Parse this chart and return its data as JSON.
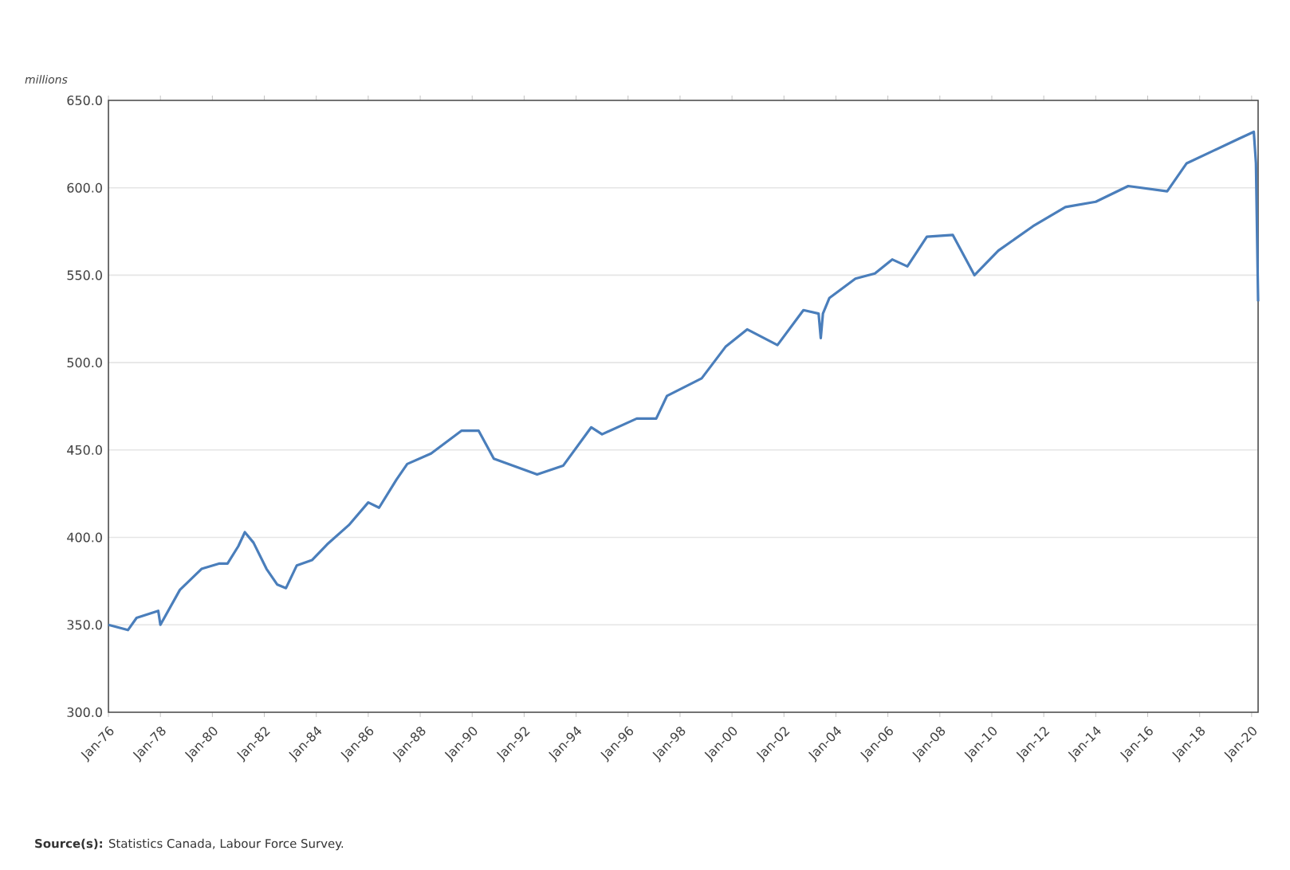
{
  "chart_data": {
    "type": "line",
    "ylabel": "millions",
    "annotations": [
      "**Source(s):** Statistics Canada, Labour Force Survey."
    ],
    "x": [
      "1976-01",
      "1976-10",
      "1977-02",
      "1977-12",
      "1978-01",
      "1978-10",
      "1979-08",
      "1980-04",
      "1980-08",
      "1981-01",
      "1981-04",
      "1981-08",
      "1982-02",
      "1982-07",
      "1982-11",
      "1983-04",
      "1983-11",
      "1984-06",
      "1985-04",
      "1986-01",
      "1986-06",
      "1987-02",
      "1987-07",
      "1988-06",
      "1989-08",
      "1990-04",
      "1990-11",
      "1992-07",
      "1993-07",
      "1994-08",
      "1995-01",
      "1996-05",
      "1997-02",
      "1997-07",
      "1998-11",
      "1999-10",
      "2000-08",
      "2001-10",
      "2002-10",
      "2003-05",
      "2003-06",
      "2003-07",
      "2003-10",
      "2004-10",
      "2005-07",
      "2006-03",
      "2006-10",
      "2007-07",
      "2008-07",
      "2009-05",
      "2010-04",
      "2011-08",
      "2012-11",
      "2014-01",
      "2015-04",
      "2016-10",
      "2017-07",
      "2018-07",
      "2019-07",
      "2020-02",
      "2020-03",
      "2020-04"
    ],
    "series": [
      {
        "color": "#4a7ebb",
        "values": [
          350,
          347,
          354,
          358,
          350,
          370,
          382,
          385,
          385,
          395,
          403,
          397,
          382,
          373,
          371,
          384,
          387,
          396,
          407,
          420,
          417,
          433,
          442,
          448,
          461,
          461,
          445,
          436,
          441,
          463,
          459,
          468,
          468,
          481,
          491,
          509,
          519,
          510,
          530,
          528,
          514,
          528,
          537,
          548,
          551,
          559,
          555,
          572,
          573,
          550,
          564,
          578,
          589,
          592,
          601,
          598,
          614,
          621,
          628,
          632,
          614,
          535
        ]
      }
    ],
    "xlim": [
      "1976-01",
      "2020-04"
    ],
    "xticks": [
      {
        "value": "1976-01",
        "label": "Jan-76"
      },
      {
        "value": "1978-01",
        "label": "Jan-78"
      },
      {
        "value": "1980-01",
        "label": "Jan-80"
      },
      {
        "value": "1982-01",
        "label": "Jan-82"
      },
      {
        "value": "1984-01",
        "label": "Jan-84"
      },
      {
        "value": "1986-01",
        "label": "Jan-86"
      },
      {
        "value": "1988-01",
        "label": "Jan-88"
      },
      {
        "value": "1990-01",
        "label": "Jan-90"
      },
      {
        "value": "1992-01",
        "label": "Jan-92"
      },
      {
        "value": "1994-01",
        "label": "Jan-94"
      },
      {
        "value": "1996-01",
        "label": "Jan-96"
      },
      {
        "value": "1998-01",
        "label": "Jan-98"
      },
      {
        "value": "2000-01",
        "label": "Jan-00"
      },
      {
        "value": "2002-01",
        "label": "Jan-02"
      },
      {
        "value": "2004-01",
        "label": "Jan-04"
      },
      {
        "value": "2006-01",
        "label": "Jan-06"
      },
      {
        "value": "2008-01",
        "label": "Jan-08"
      },
      {
        "value": "2010-01",
        "label": "Jan-10"
      },
      {
        "value": "2012-01",
        "label": "Jan-12"
      },
      {
        "value": "2014-01",
        "label": "Jan-14"
      },
      {
        "value": "2016-01",
        "label": "Jan-16"
      },
      {
        "value": "2018-01",
        "label": "Jan-18"
      },
      {
        "value": "2020-01",
        "label": "Jan-20"
      }
    ],
    "ylim": [
      300,
      650
    ],
    "yticks": [
      {
        "value": 300,
        "label": "300.0"
      },
      {
        "value": 350,
        "label": "350.0"
      },
      {
        "value": 400,
        "label": "400.0"
      },
      {
        "value": 450,
        "label": "450.0"
      },
      {
        "value": 500,
        "label": "500.0"
      },
      {
        "value": 550,
        "label": "550.0"
      },
      {
        "value": 600,
        "label": "600.0"
      },
      {
        "value": 650,
        "label": "650.0"
      }
    ],
    "grid": "y"
  }
}
